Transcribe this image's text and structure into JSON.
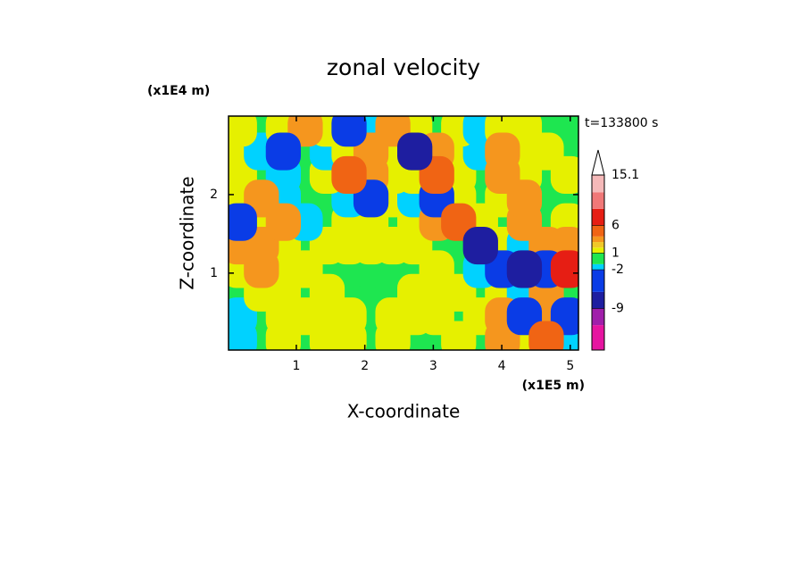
{
  "chart_data": {
    "type": "contour",
    "title": "zonal velocity",
    "xlabel": "X-coordinate",
    "ylabel": "Z-coordinate",
    "x_unit": "(x1E5 m)",
    "y_unit": "(x1E4 m)",
    "annotation": "t=133800 s",
    "xlim": [
      0.01,
      5.12
    ],
    "ylim": [
      0.02,
      3.0
    ],
    "xticks": [
      1,
      2,
      3,
      4,
      5
    ],
    "yticks": [
      1,
      2
    ],
    "x": [
      0.17,
      0.49,
      0.81,
      1.13,
      1.45,
      1.77,
      2.09,
      2.41,
      2.73,
      3.05,
      3.37,
      3.69,
      4.01,
      4.33,
      4.65,
      4.97
    ],
    "y": [
      0.15,
      0.45,
      0.75,
      1.05,
      1.35,
      1.65,
      1.95,
      2.25,
      2.55,
      2.85
    ],
    "z": [
      [
        -1.5,
        0,
        1.5,
        0,
        1.5,
        1.5,
        0,
        1.5,
        0,
        0,
        1.5,
        0,
        3.5,
        1.5,
        5,
        -1.5
      ],
      [
        -1.5,
        0,
        1.5,
        1.5,
        1.5,
        1.5,
        0,
        1.5,
        1.5,
        1.5,
        0,
        1.5,
        3.5,
        -4,
        3.5,
        -4
      ],
      [
        0,
        1.5,
        1.5,
        0,
        1.5,
        0,
        0,
        0,
        1.5,
        1.5,
        1.5,
        0,
        1.5,
        -1.5,
        3.5,
        0
      ],
      [
        1.5,
        3.5,
        1.5,
        1.5,
        0,
        0,
        0,
        0,
        0,
        1.5,
        0,
        -1.5,
        -4,
        -7,
        -4,
        7
      ],
      [
        3.5,
        3.5,
        1.5,
        0,
        1.5,
        1.5,
        1.5,
        1.5,
        1.5,
        0,
        0,
        -7,
        1.5,
        -1.5,
        3.5,
        3.5
      ],
      [
        -4,
        1.5,
        3.5,
        -1.5,
        0,
        1.5,
        1.5,
        0,
        1.5,
        3.5,
        5,
        1.5,
        0,
        3.5,
        0,
        1.5
      ],
      [
        1.5,
        3.5,
        -1.5,
        0,
        0,
        -1.5,
        -4,
        1.5,
        -1.5,
        -4,
        1.5,
        0,
        1.5,
        3.5,
        0,
        0
      ],
      [
        1.5,
        0,
        -1.5,
        0,
        1.5,
        5,
        3.5,
        1.5,
        1.5,
        5,
        1.5,
        0,
        3.5,
        1.5,
        0,
        1.5
      ],
      [
        1.5,
        -1.5,
        -4,
        0,
        -1.5,
        1.5,
        3.5,
        1.5,
        -7,
        3.5,
        1.5,
        -1.5,
        3.5,
        1.5,
        1.5,
        0
      ],
      [
        1.5,
        0,
        1.5,
        3.5,
        1.5,
        -4,
        -1.5,
        3.5,
        1.5,
        0,
        1.5,
        -1.5,
        1.5,
        1.5,
        0,
        0
      ]
    ],
    "levels": [
      -12,
      -9,
      -6,
      -2,
      -1,
      1,
      2,
      3,
      4,
      6,
      9,
      12
    ],
    "colors": [
      "#e614a0",
      "#a01eaa",
      "#1e1ea0",
      "#0a3ce6",
      "#00d2ff",
      "#1ee650",
      "#e6f000",
      "#f0c828",
      "#f5961e",
      "#f06414",
      "#e61e14",
      "#f07878",
      "#f5b9b9"
    ],
    "colorbar_lim": [
      -16.5,
      15.1
    ],
    "colorbar_ticks": [
      -9,
      -2,
      1,
      6,
      15.1
    ]
  }
}
